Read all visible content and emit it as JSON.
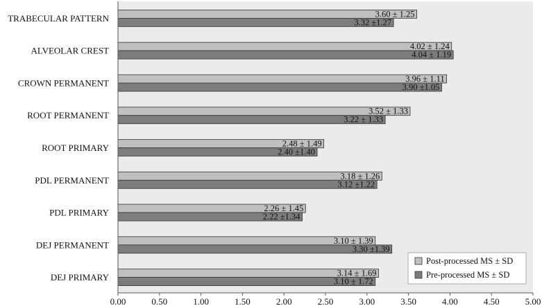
{
  "chart_data": {
    "type": "bar",
    "orientation": "horizontal",
    "categories": [
      "TRABECULAR PATTERN",
      "ALVEOLAR CREST",
      "CROWN PERMANENT",
      "ROOT PERMANENT",
      "ROOT PRIMARY",
      "PDL PERMANENT",
      "PDL PRIMARY",
      "DEJ PERMANENT",
      "DEJ PRIMARY"
    ],
    "series": [
      {
        "name": "Post-processed MS ± SD",
        "color": "#c0c0c0",
        "values": [
          3.6,
          4.02,
          3.96,
          3.52,
          2.48,
          3.18,
          2.26,
          3.1,
          3.14
        ],
        "labels": [
          "3.60 ± 1.25",
          "4.02 ± 1.24",
          "3.96 ± 1.11",
          "3.52 ± 1.33",
          "2.48 ± 1.49",
          "3.18 ± 1.26",
          "2.26 ± 1.45",
          "3.10 ± 1.39",
          "3.14 ± 1.69"
        ]
      },
      {
        "name": "Pre-processed MS ± SD",
        "color": "#7d7d7d",
        "values": [
          3.32,
          4.04,
          3.9,
          3.22,
          2.4,
          3.12,
          2.22,
          3.3,
          3.1
        ],
        "labels": [
          "3.32 ±1.27",
          "4.04 ± 1.19",
          "3.90 ±1.05",
          "3.22 ± 1.33",
          "2.40 ±1.40",
          "3.12 ±1.22",
          "2.22 ±1.34",
          "3.30 ±1.39",
          "3.10 ± 1.72"
        ]
      }
    ],
    "xlim": [
      0,
      5
    ],
    "xticks": [
      "0.00",
      "0.50",
      "1.00",
      "1.50",
      "2.00",
      "2.50",
      "3.00",
      "3.50",
      "4.00",
      "4.50",
      "5.00"
    ],
    "grid": false,
    "plot_background": "#ebebeb",
    "legend_position": "bottom-right",
    "title": "",
    "xlabel": "",
    "ylabel": ""
  }
}
